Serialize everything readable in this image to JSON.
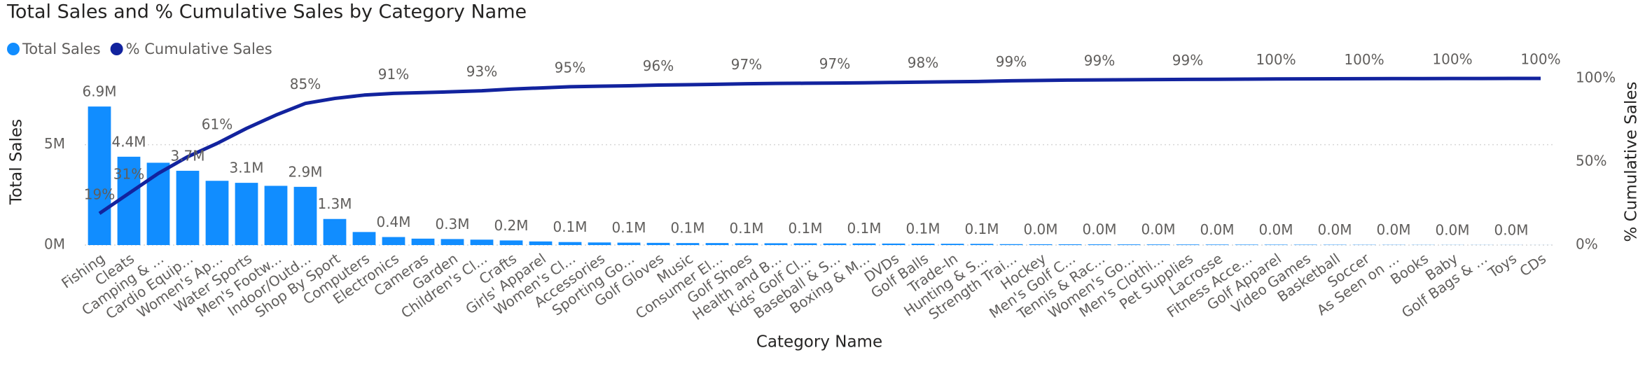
{
  "chart_data": {
    "type": "combo",
    "title": "Total Sales and % Cumulative Sales by Category Name",
    "xlabel": "Category Name",
    "ylabel": "Total Sales",
    "y2label": "% Cumulative Sales",
    "legend": "top-left",
    "grid": true,
    "categories": [
      "Fishing",
      "Cleats",
      "Camping & ...",
      "Cardio Equip...",
      "Women's Ap...",
      "Water Sports",
      "Men's Footw...",
      "Indoor/Outd...",
      "Shop By Sport",
      "Computers",
      "Electronics",
      "Cameras",
      "Garden",
      "Children's Cl...",
      "Crafts",
      "Girls' Apparel",
      "Women's Cl...",
      "Accessories",
      "Sporting Go...",
      "Golf Gloves",
      "Music",
      "Consumer El...",
      "Golf Shoes",
      "Health and B...",
      "Kids' Golf Cl...",
      "Baseball & S...",
      "Boxing & M...",
      "DVDs",
      "Golf Balls",
      "Trade-In",
      "Hunting & S...",
      "Strength Trai...",
      "Hockey",
      "Men's Golf C...",
      "Tennis & Rac...",
      "Women's Go...",
      "Men's Clothi...",
      "Pet Supplies",
      "Lacrosse",
      "Fitness Acce...",
      "Golf Apparel",
      "Video Games",
      "Basketball",
      "Soccer",
      "As Seen on ...",
      "Books",
      "Baby",
      "Golf Bags & ...",
      "Toys",
      "CDs"
    ],
    "ylim": [
      0,
      8300000
    ],
    "yticks": [
      {
        "value": 0,
        "label": "0M"
      },
      {
        "value": 5000000,
        "label": "5M"
      }
    ],
    "y2lim": [
      0,
      100
    ],
    "y2ticks": [
      {
        "value": 0,
        "label": "0%"
      },
      {
        "value": 50,
        "label": "50%"
      },
      {
        "value": 100,
        "label": "100%"
      }
    ],
    "series": [
      {
        "name": "Total Sales",
        "type": "bar",
        "color": "#118DFF",
        "values": [
          6900000,
          4400000,
          4100000,
          3700000,
          3200000,
          3100000,
          2950000,
          2900000,
          1300000,
          650000,
          400000,
          320000,
          300000,
          270000,
          230000,
          180000,
          150000,
          130000,
          120000,
          110000,
          100000,
          100000,
          90000,
          90000,
          85000,
          80000,
          80000,
          75000,
          70000,
          65000,
          60000,
          45000,
          40000,
          38000,
          35000,
          32000,
          30000,
          28000,
          25000,
          22000,
          20000,
          18000,
          15000,
          12000,
          10000,
          8000,
          6000,
          5000,
          4000,
          2000
        ],
        "value_labels": [
          "6.9M",
          "4.4M",
          null,
          "3.7M",
          null,
          "3.1M",
          null,
          "2.9M",
          "1.3M",
          null,
          "0.4M",
          null,
          "0.3M",
          null,
          "0.2M",
          null,
          "0.1M",
          null,
          "0.1M",
          null,
          "0.1M",
          null,
          "0.1M",
          null,
          "0.1M",
          null,
          "0.1M",
          null,
          "0.1M",
          null,
          "0.1M",
          null,
          "0.0M",
          null,
          "0.0M",
          null,
          "0.0M",
          null,
          "0.0M",
          null,
          "0.0M",
          null,
          "0.0M",
          null,
          "0.0M",
          null,
          "0.0M",
          null,
          "0.0M",
          null
        ]
      },
      {
        "name": "% Cumulative Sales",
        "type": "line",
        "axis": "y2",
        "color": "#12239E",
        "values": [
          19,
          31,
          43,
          53,
          61,
          70,
          78,
          85,
          88,
          90,
          91,
          91.5,
          92,
          92.6,
          93.6,
          94.3,
          95,
          95.3,
          95.6,
          96,
          96.2,
          96.5,
          96.8,
          97,
          97.1,
          97.2,
          97.4,
          97.6,
          97.8,
          98,
          98.2,
          98.6,
          98.8,
          99,
          99.1,
          99.2,
          99.3,
          99.4,
          99.5,
          99.6,
          99.7,
          99.75,
          99.8,
          99.85,
          99.9,
          99.92,
          99.95,
          99.97,
          99.99,
          100
        ],
        "value_labels": [
          "19%",
          "31%",
          null,
          null,
          "61%",
          null,
          null,
          "85%",
          null,
          null,
          "91%",
          null,
          null,
          "93%",
          null,
          null,
          "95%",
          null,
          null,
          "96%",
          null,
          null,
          "97%",
          null,
          null,
          "97%",
          null,
          null,
          "98%",
          null,
          null,
          "99%",
          null,
          null,
          "99%",
          null,
          null,
          "99%",
          null,
          null,
          "100%",
          null,
          null,
          "100%",
          null,
          null,
          "100%",
          null,
          null,
          "100%"
        ]
      }
    ]
  }
}
